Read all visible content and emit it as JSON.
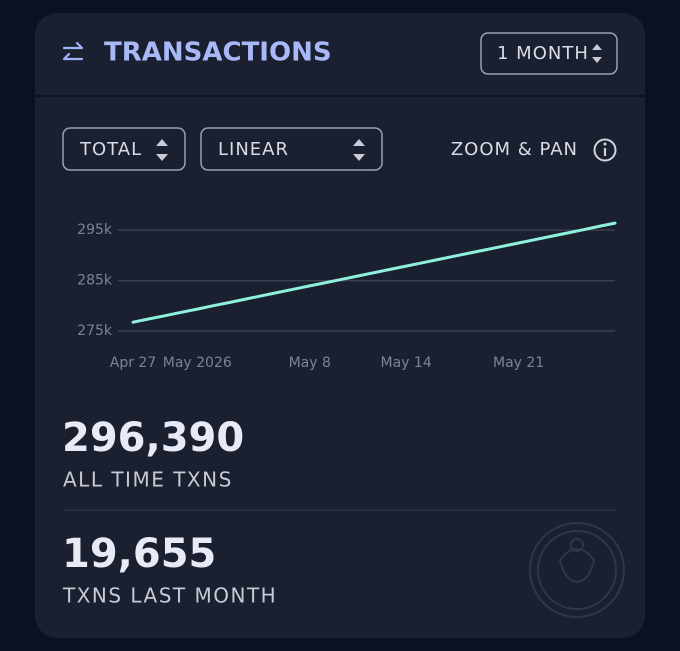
{
  "header": {
    "title": "TRANSACTIONS",
    "period": "1 MONTH"
  },
  "controls": {
    "mode": "TOTAL",
    "scale": "LINEAR",
    "zoom": "ZOOM & PAN"
  },
  "chart_data": {
    "type": "line",
    "categories": [
      "Apr 27",
      null,
      null,
      null,
      "May 2026",
      null,
      null,
      null,
      null,
      null,
      null,
      "May 8",
      null,
      null,
      null,
      null,
      null,
      "May 14",
      null,
      null,
      null,
      null,
      null,
      null,
      "May 21",
      null,
      null,
      null,
      null,
      null,
      null
    ],
    "series": [
      {
        "color": "#8ff0dc",
        "values": [
          276735,
          277390,
          278040,
          278700,
          279350,
          280010,
          280660,
          281320,
          281970,
          282630,
          283280,
          283940,
          284590,
          285250,
          285900,
          286560,
          287210,
          287870,
          288520,
          289180,
          289830,
          290490,
          291140,
          291800,
          292450,
          293110,
          293760,
          294420,
          295070,
          295730,
          296390
        ]
      }
    ],
    "ylim": [
      275000,
      298000
    ],
    "yticks": [
      {
        "value": 275000,
        "label": "275k"
      },
      {
        "value": 285000,
        "label": "285k"
      },
      {
        "value": 295000,
        "label": "295k"
      }
    ],
    "grid": true
  },
  "stats": [
    {
      "value": "296,390",
      "label": "ALL TIME TXNS"
    },
    {
      "value": "19,655",
      "label": "TXNS LAST MONTH"
    }
  ]
}
